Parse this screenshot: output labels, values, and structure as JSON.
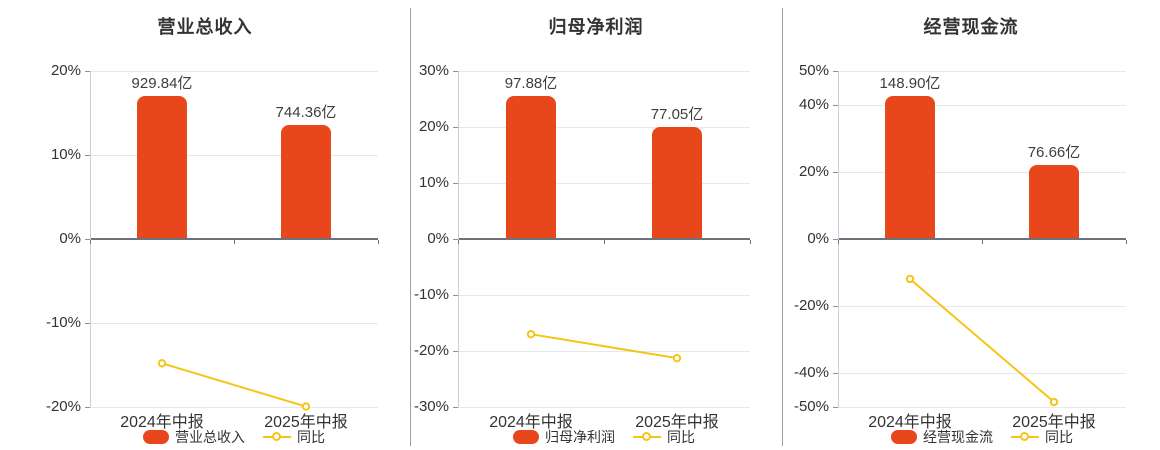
{
  "colors": {
    "bar": "#e8471c",
    "line": "#f5c515",
    "grid": "#e3e8f3",
    "zero_axis": "#6e727a",
    "y_axis_line": "#c9cfda",
    "tick": "#8a8f98",
    "text": "#333333",
    "divider": "#9e9e9e",
    "background": "#ffffff"
  },
  "chart_data": [
    {
      "type": "bar",
      "title": "营业总收入",
      "categories": [
        "2024年中报",
        "2025年中报"
      ],
      "bar_series": {
        "name": "营业总收入",
        "unit": "亿",
        "values": [
          929.84,
          744.36
        ],
        "labels": [
          "929.84亿",
          "744.36亿"
        ]
      },
      "line_series": {
        "name": "同比",
        "unit": "%",
        "values_pct": [
          -14.8,
          -19.95
        ]
      },
      "ylim": [
        -20,
        20
      ],
      "yticks_pct": [
        20,
        10,
        0,
        -10,
        -20
      ],
      "legend": [
        "营业总收入",
        "同比"
      ],
      "grid_on": true,
      "legend_position": "bottom"
    },
    {
      "type": "bar",
      "title": "归母净利润",
      "categories": [
        "2024年中报",
        "2025年中报"
      ],
      "bar_series": {
        "name": "归母净利润",
        "unit": "亿",
        "values": [
          97.88,
          77.05
        ],
        "labels": [
          "97.88亿",
          "77.05亿"
        ]
      },
      "line_series": {
        "name": "同比",
        "unit": "%",
        "values_pct": [
          -17.0,
          -21.28
        ]
      },
      "ylim": [
        -30,
        30
      ],
      "yticks_pct": [
        30,
        20,
        10,
        0,
        -10,
        -20,
        -30
      ],
      "legend": [
        "归母净利润",
        "同比"
      ],
      "grid_on": true,
      "legend_position": "bottom"
    },
    {
      "type": "bar",
      "title": "经营现金流",
      "categories": [
        "2024年中报",
        "2025年中报"
      ],
      "bar_series": {
        "name": "经营现金流",
        "unit": "亿",
        "values": [
          148.9,
          76.66
        ],
        "labels": [
          "148.90亿",
          "76.66亿"
        ]
      },
      "line_series": {
        "name": "同比",
        "unit": "%",
        "values_pct": [
          -11.9,
          -48.51
        ]
      },
      "ylim": [
        -50,
        50
      ],
      "yticks_pct": [
        50,
        40,
        20,
        0,
        -20,
        -40,
        -50
      ],
      "legend": [
        "经营现金流",
        "同比"
      ],
      "grid_on": true,
      "legend_position": "bottom"
    }
  ]
}
